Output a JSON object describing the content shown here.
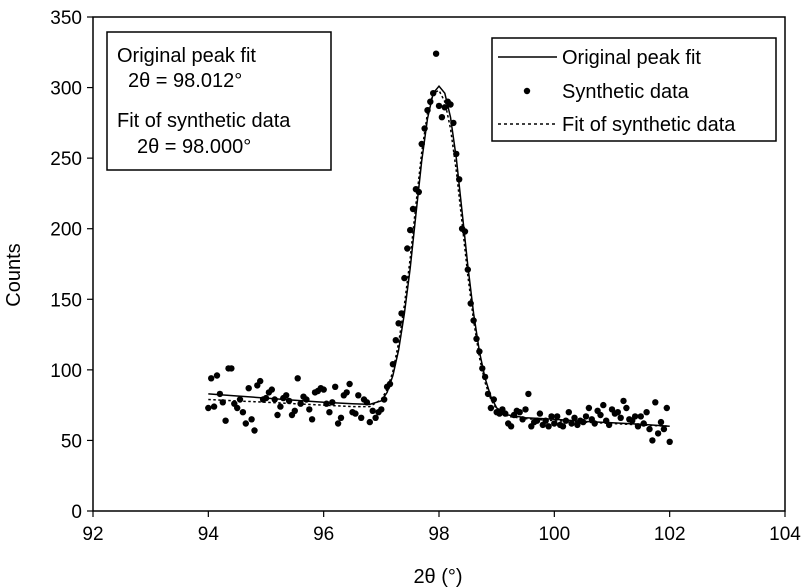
{
  "chart_data": {
    "type": "scatter",
    "xlabel": "2θ (°)",
    "ylabel": "Counts",
    "xlim": [
      92,
      104
    ],
    "ylim": [
      0,
      350
    ],
    "xticks": [
      92,
      94,
      96,
      98,
      100,
      102,
      104
    ],
    "yticks": [
      0,
      50,
      100,
      150,
      200,
      250,
      300,
      350
    ],
    "grid": false,
    "legend": {
      "position": "top-right",
      "entries": [
        {
          "label": "Original peak fit",
          "style": "solid-line"
        },
        {
          "label": "Synthetic data",
          "style": "marker"
        },
        {
          "label": "Fit of synthetic data",
          "style": "dotted-line"
        }
      ]
    },
    "annotation": {
      "position": "top-left",
      "lines": [
        "Original peak fit",
        "2θ = 98.012°",
        "Fit of synthetic data",
        "2θ = 98.000°"
      ]
    },
    "series": [
      {
        "name": "Original peak fit",
        "type": "line",
        "style": "solid",
        "x": [
          94.0,
          94.5,
          95.0,
          95.5,
          96.0,
          96.5,
          96.8,
          97.0,
          97.1,
          97.2,
          97.3,
          97.4,
          97.5,
          97.6,
          97.7,
          97.8,
          97.9,
          98.0,
          98.1,
          98.2,
          98.3,
          98.4,
          98.5,
          98.6,
          98.7,
          98.8,
          98.9,
          99.0,
          99.2,
          99.5,
          100.0,
          100.5,
          101.0,
          101.5,
          102.0
        ],
        "y": [
          83,
          81.5,
          80,
          78.5,
          77,
          76,
          75.5,
          78,
          84,
          96,
          114,
          140,
          172,
          210,
          248,
          278,
          296,
          301,
          296,
          279,
          250,
          212,
          174,
          140,
          113,
          94,
          81,
          73,
          68,
          66,
          65,
          63.5,
          62.5,
          61.5,
          60
        ]
      },
      {
        "name": "Fit of synthetic data",
        "type": "line",
        "style": "dotted",
        "x": [
          94.0,
          94.5,
          95.0,
          95.5,
          96.0,
          96.5,
          96.8,
          97.0,
          97.1,
          97.2,
          97.3,
          97.4,
          97.5,
          97.6,
          97.7,
          97.8,
          97.9,
          98.0,
          98.1,
          98.2,
          98.3,
          98.4,
          98.5,
          98.6,
          98.7,
          98.8,
          98.9,
          99.0,
          99.2,
          99.5,
          100.0,
          100.5,
          101.0,
          101.5,
          102.0
        ],
        "y": [
          79,
          78,
          77,
          76,
          75,
          74,
          74,
          79,
          86,
          99,
          119,
          146,
          179,
          217,
          254,
          282,
          296,
          298,
          290,
          271,
          241,
          204,
          167,
          135,
          109,
          91,
          79,
          72,
          67,
          65.5,
          64,
          63,
          62,
          61,
          60
        ]
      },
      {
        "name": "Synthetic data",
        "type": "scatter",
        "x": [
          94.0,
          94.05,
          94.1,
          94.15,
          94.2,
          94.25,
          94.3,
          94.35,
          94.4,
          94.45,
          94.5,
          94.55,
          94.6,
          94.65,
          94.7,
          94.75,
          94.8,
          94.85,
          94.9,
          94.95,
          95.0,
          95.05,
          95.1,
          95.15,
          95.2,
          95.25,
          95.3,
          95.35,
          95.4,
          95.45,
          95.5,
          95.55,
          95.6,
          95.65,
          95.7,
          95.75,
          95.8,
          95.85,
          95.9,
          95.95,
          96.0,
          96.05,
          96.1,
          96.15,
          96.2,
          96.25,
          96.3,
          96.35,
          96.4,
          96.45,
          96.5,
          96.55,
          96.6,
          96.65,
          96.7,
          96.75,
          96.8,
          96.85,
          96.9,
          96.95,
          97.0,
          97.05,
          97.1,
          97.15,
          97.2,
          97.25,
          97.3,
          97.35,
          97.4,
          97.45,
          97.5,
          97.55,
          97.6,
          97.65,
          97.7,
          97.75,
          97.8,
          97.85,
          97.9,
          97.95,
          98.0,
          98.05,
          98.1,
          98.15,
          98.2,
          98.25,
          98.3,
          98.35,
          98.4,
          98.45,
          98.5,
          98.55,
          98.6,
          98.65,
          98.7,
          98.75,
          98.8,
          98.85,
          98.9,
          98.95,
          99.0,
          99.05,
          99.1,
          99.15,
          99.2,
          99.25,
          99.3,
          99.35,
          99.4,
          99.45,
          99.5,
          99.55,
          99.6,
          99.65,
          99.7,
          99.75,
          99.8,
          99.85,
          99.9,
          99.95,
          100.0,
          100.05,
          100.1,
          100.15,
          100.2,
          100.25,
          100.3,
          100.35,
          100.4,
          100.45,
          100.5,
          100.55,
          100.6,
          100.65,
          100.7,
          100.75,
          100.8,
          100.85,
          100.9,
          100.95,
          101.0,
          101.05,
          101.1,
          101.15,
          101.2,
          101.25,
          101.3,
          101.35,
          101.4,
          101.45,
          101.5,
          101.55,
          101.6,
          101.65,
          101.7,
          101.75,
          101.8,
          101.85,
          101.9,
          101.95,
          102.0
        ],
        "y": [
          73,
          94,
          74,
          96,
          83,
          77,
          64,
          101,
          101,
          76,
          73,
          79,
          70,
          62,
          87,
          65,
          57,
          89,
          92,
          79,
          80,
          84,
          86,
          79,
          68,
          74,
          80,
          82,
          78,
          68,
          71,
          94,
          76,
          81,
          79,
          72,
          65,
          84,
          85,
          87,
          86,
          76,
          70,
          77,
          88,
          62,
          66,
          82,
          84,
          90,
          70,
          69,
          82,
          66,
          79,
          77,
          63,
          71,
          66,
          70,
          72,
          79,
          88,
          90,
          104,
          121,
          133,
          140,
          165,
          186,
          199,
          214,
          228,
          226,
          260,
          271,
          284,
          290,
          296,
          324,
          287,
          279,
          286,
          290,
          288,
          275,
          253,
          235,
          200,
          198,
          171,
          147,
          135,
          122,
          113,
          101,
          95,
          83,
          73,
          79,
          70,
          69,
          72,
          69,
          62,
          60,
          68,
          71,
          70,
          65,
          72,
          83,
          60,
          63,
          64,
          69,
          61,
          64,
          60,
          67,
          62,
          67,
          61,
          60,
          64,
          70,
          62,
          66,
          61,
          64,
          63,
          67,
          73,
          65,
          62,
          71,
          68,
          75,
          64,
          61,
          72,
          69,
          70,
          66,
          78,
          73,
          65,
          64,
          67,
          60,
          67,
          62,
          70,
          58,
          50,
          77,
          55,
          63,
          58,
          73,
          49
        ]
      }
    ]
  }
}
